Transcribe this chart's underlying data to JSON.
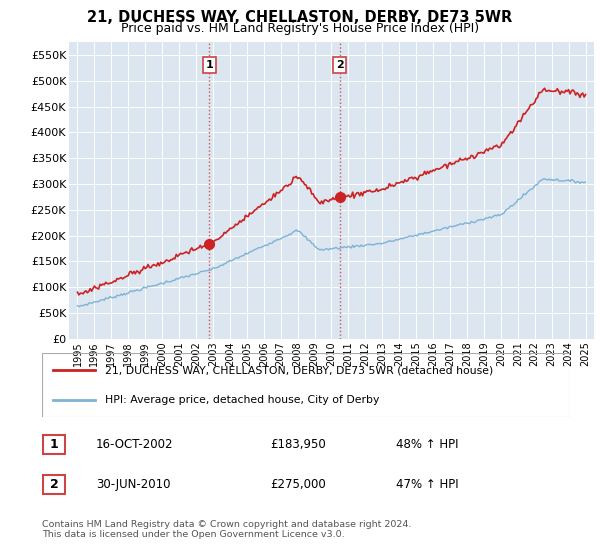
{
  "title": "21, DUCHESS WAY, CHELLASTON, DERBY, DE73 5WR",
  "subtitle": "Price paid vs. HM Land Registry's House Price Index (HPI)",
  "ylim": [
    0,
    575000
  ],
  "yticks": [
    0,
    50000,
    100000,
    150000,
    200000,
    250000,
    300000,
    350000,
    400000,
    450000,
    500000,
    550000
  ],
  "ytick_labels": [
    "£0",
    "£50K",
    "£100K",
    "£150K",
    "£200K",
    "£250K",
    "£300K",
    "£350K",
    "£400K",
    "£450K",
    "£500K",
    "£550K"
  ],
  "background_color": "#ffffff",
  "plot_bg_color": "#dce6f1",
  "grid_color": "#ffffff",
  "red_line_color": "#cc2222",
  "blue_line_color": "#7fb3d3",
  "sale1_price": 183950,
  "sale1_year": 2002.79,
  "sale2_price": 275000,
  "sale2_year": 2010.49,
  "legend_line1": "21, DUCHESS WAY, CHELLASTON, DERBY, DE73 5WR (detached house)",
  "legend_line2": "HPI: Average price, detached house, City of Derby",
  "table_row1": [
    "1",
    "16-OCT-2002",
    "£183,950",
    "48% ↑ HPI"
  ],
  "table_row2": [
    "2",
    "30-JUN-2010",
    "£275,000",
    "47% ↑ HPI"
  ],
  "footer": "Contains HM Land Registry data © Crown copyright and database right 2024.\nThis data is licensed under the Open Government Licence v3.0.",
  "x_start_year": 1995,
  "x_end_year": 2025,
  "vline_color": "#cc4444",
  "marker_color": "#cc2222"
}
